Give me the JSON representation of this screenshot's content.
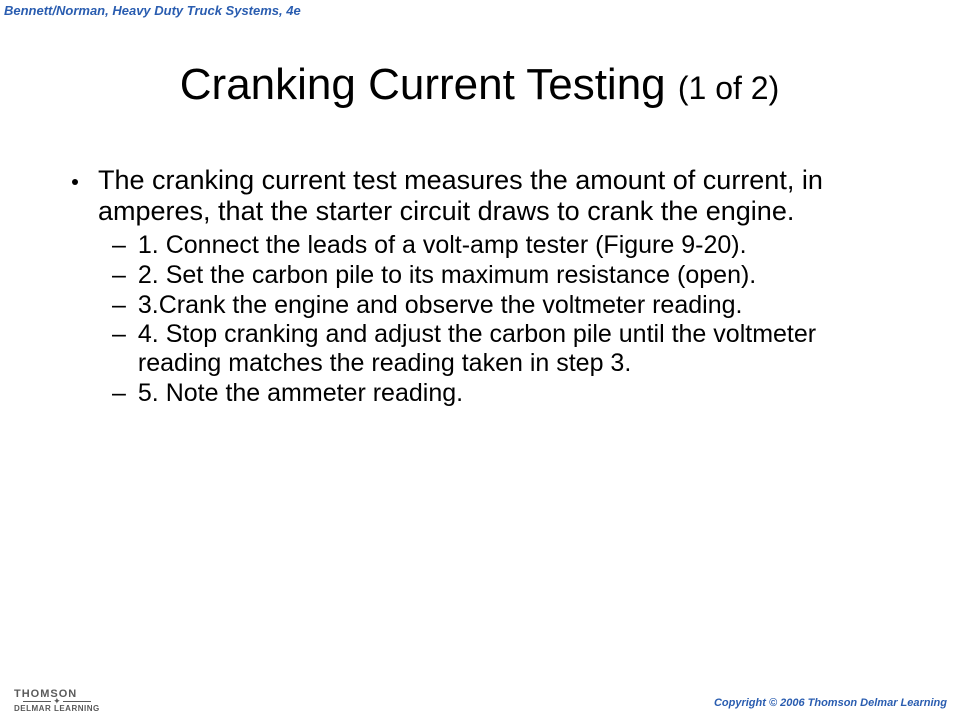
{
  "header": {
    "text": "Bennett/Norman, Heavy Duty Truck Systems, 4e",
    "color": "#2a5db0"
  },
  "title": {
    "main": "Cranking Current Testing ",
    "sub": "(1 of 2)",
    "main_fontsize": 44,
    "sub_fontsize": 32
  },
  "bullet": {
    "text": "The cranking current test measures the amount of current, in amperes, that the starter circuit draws to crank the engine.",
    "fontsize": 27
  },
  "steps": [
    "1. Connect the leads of a volt-amp tester (Figure 9-20).",
    "2. Set the carbon pile to its maximum resistance (open).",
    "3.Crank the engine and observe the voltmeter reading.",
    "4. Stop cranking and adjust the carbon pile until the voltmeter reading matches the reading taken in step 3.",
    "5. Note the ammeter reading."
  ],
  "steps_fontsize": 25,
  "footer": {
    "thomson_top": "THOMSON",
    "thomson_bottom": "DELMAR LEARNING",
    "copyright": "Copyright © 2006 Thomson Delmar Learning",
    "logo_color": "#5a5a5a",
    "copyright_color": "#2a5db0"
  },
  "colors": {
    "background": "#ffffff",
    "text": "#000000"
  }
}
